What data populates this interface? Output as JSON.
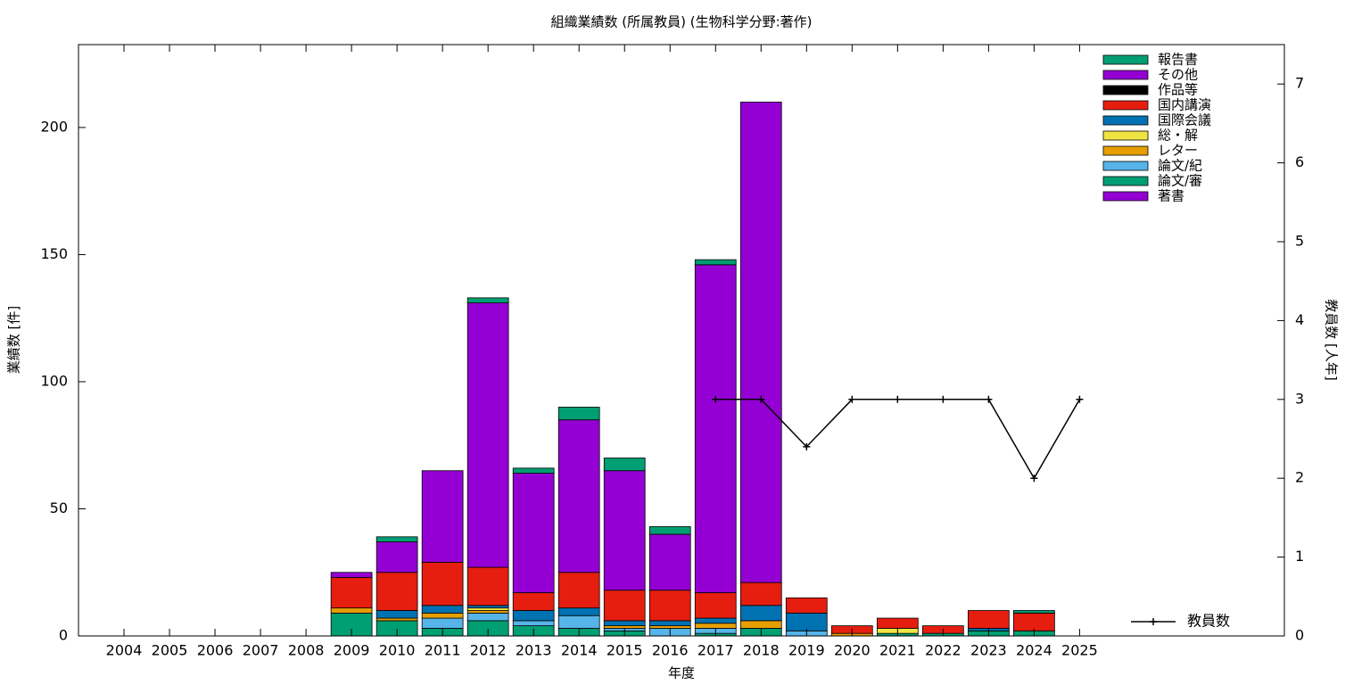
{
  "chart_data": {
    "type": "bar",
    "stacked": true,
    "title": "組織業績数 (所属教員) (生物科学分野:著作)",
    "xlabel": "年度",
    "ylabel": "業績数 [件]",
    "y2label": "教員数 [人年]",
    "x": [
      2004,
      2005,
      2006,
      2007,
      2008,
      2009,
      2010,
      2011,
      2012,
      2013,
      2014,
      2015,
      2016,
      2017,
      2018,
      2019,
      2020,
      2021,
      2022,
      2023,
      2024,
      2025
    ],
    "xlim": [
      2003,
      2029.5
    ],
    "xticks": [
      2004,
      2005,
      2006,
      2007,
      2008,
      2009,
      2010,
      2011,
      2012,
      2013,
      2014,
      2015,
      2016,
      2017,
      2018,
      2019,
      2020,
      2021,
      2022,
      2023,
      2024,
      2025
    ],
    "ylim": [
      0,
      232.6
    ],
    "yticks": [
      0,
      50,
      100,
      150,
      200
    ],
    "y2lim": [
      0,
      7.5
    ],
    "y2ticks": [
      0,
      1,
      2,
      3,
      4,
      5,
      6,
      7
    ],
    "series": [
      {
        "name": "著書",
        "color": "#9400d3",
        "values": [
          0,
          0,
          0,
          0,
          0,
          0,
          0,
          0,
          0,
          0,
          0,
          0,
          0,
          0,
          0,
          0,
          0,
          0,
          0,
          0,
          0,
          0
        ]
      },
      {
        "name": "論文/審",
        "color": "#009e73",
        "values": [
          0,
          0,
          0,
          0,
          0,
          9,
          6,
          3,
          6,
          4,
          3,
          2,
          0,
          1,
          3,
          0,
          0,
          1,
          1,
          2,
          2,
          0
        ]
      },
      {
        "name": "論文/紀",
        "color": "#56b4e9",
        "values": [
          0,
          0,
          0,
          0,
          0,
          0,
          0,
          4,
          3,
          2,
          5,
          1,
          3,
          2,
          0,
          2,
          0,
          0,
          0,
          0,
          0,
          0
        ]
      },
      {
        "name": "レター",
        "color": "#e69f00",
        "values": [
          0,
          0,
          0,
          0,
          0,
          2,
          1,
          2,
          1,
          0,
          0,
          1,
          1,
          2,
          3,
          0,
          1,
          0,
          0,
          0,
          0,
          0
        ]
      },
      {
        "name": "総・解",
        "color": "#f0e442",
        "values": [
          0,
          0,
          0,
          0,
          0,
          0,
          0,
          0,
          1,
          0,
          0,
          0,
          0,
          0,
          0,
          0,
          0,
          2,
          0,
          0,
          0,
          0
        ]
      },
      {
        "name": "国際会議",
        "color": "#0072b2",
        "values": [
          0,
          0,
          0,
          0,
          0,
          0,
          3,
          3,
          1,
          4,
          3,
          2,
          2,
          2,
          6,
          7,
          0,
          0,
          0,
          1,
          0,
          0
        ]
      },
      {
        "name": "国内講演",
        "color": "#e51e10",
        "values": [
          0,
          0,
          0,
          0,
          0,
          12,
          15,
          17,
          15,
          7,
          14,
          12,
          12,
          10,
          9,
          6,
          3,
          4,
          3,
          7,
          7,
          0
        ]
      },
      {
        "name": "作品等",
        "color": "#000000",
        "values": [
          0,
          0,
          0,
          0,
          0,
          0,
          0,
          0,
          0,
          0,
          0,
          0,
          0,
          0,
          0,
          0,
          0,
          0,
          0,
          0,
          0,
          0
        ]
      },
      {
        "name": "その他",
        "color": "#9400d3",
        "values": [
          0,
          0,
          0,
          0,
          0,
          2,
          12,
          36,
          104,
          47,
          60,
          47,
          22,
          129,
          189,
          0,
          0,
          0,
          0,
          0,
          0,
          0
        ]
      },
      {
        "name": "報告書",
        "color": "#009e73",
        "values": [
          0,
          0,
          0,
          0,
          0,
          0,
          2,
          0,
          2,
          2,
          5,
          5,
          3,
          2,
          0,
          0,
          0,
          0,
          0,
          0,
          1,
          0
        ]
      },
      {
        "name": "教員数",
        "color": "#000000",
        "type": "line",
        "axis": "y2",
        "values": [
          null,
          null,
          null,
          null,
          null,
          null,
          null,
          null,
          null,
          null,
          null,
          null,
          null,
          3,
          3,
          2.4,
          3,
          3,
          3,
          3,
          2,
          3
        ]
      }
    ]
  }
}
